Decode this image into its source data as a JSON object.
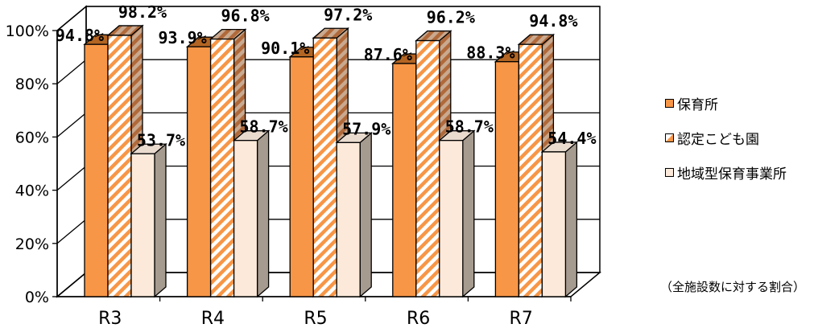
{
  "chart_data": {
    "type": "bar",
    "categories": [
      "R3",
      "R4",
      "R5",
      "R6",
      "R7"
    ],
    "series": [
      {
        "name": "保育所",
        "values": [
          94.8,
          93.9,
          90.1,
          87.6,
          88.3
        ],
        "labels": [
          "94.8%",
          "93.9%",
          "90.1%",
          "87.6%",
          "88.3%"
        ]
      },
      {
        "name": "認定こども園",
        "values": [
          98.2,
          96.8,
          97.2,
          96.2,
          94.8
        ],
        "labels": [
          "98.2%",
          "96.8%",
          "97.2%",
          "96.2%",
          "94.8%"
        ]
      },
      {
        "name": "地域型保育事業所",
        "values": [
          53.7,
          58.7,
          57.9,
          58.7,
          54.4
        ],
        "labels": [
          "53.7%",
          "58.7%",
          "57.9%",
          "58.7%",
          "54.4%"
        ]
      }
    ],
    "yticks": [
      "0%",
      "20%",
      "40%",
      "60%",
      "80%",
      "100%"
    ],
    "ylim": [
      0,
      100
    ],
    "grid": true,
    "legend": "right",
    "note": "（全施設数に対する割合）",
    "colors": {
      "series1": "#F79646",
      "series2_stripe": "#F79646",
      "series3": "#FDE9D9",
      "side": "#A69B8F",
      "grid": "#000000"
    }
  }
}
